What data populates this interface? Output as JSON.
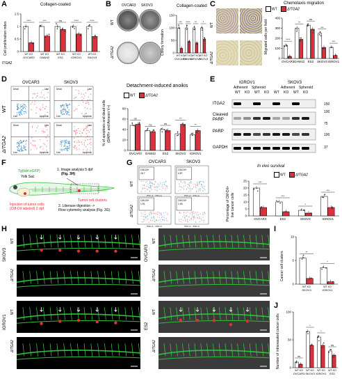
{
  "colors": {
    "wt": "#ffffff",
    "ko": "#d9313d",
    "dot": "#444444",
    "zebra": "#2fbf3a",
    "red": "#e03030",
    "lightgray": "#cfcfcf"
  },
  "panels": {
    "A": "A",
    "B": "B",
    "C": "C",
    "D": "D",
    "E": "E",
    "F": "F",
    "G": "G",
    "H": "H",
    "I": "I",
    "J": "J"
  },
  "legend": {
    "wt": "WT",
    "ko": "ΔITGA2"
  },
  "A": {
    "title": "Collagen-coated",
    "ylabel": "Cell proliferation index",
    "row_itga2": "ITGA2",
    "sig": [
      "****",
      "***",
      "ns",
      "****",
      "****"
    ],
    "chart_data": {
      "type": "bar",
      "categories": [
        "OVCAR3",
        "OAW42",
        "ES2",
        "IGROV1",
        "SKOV3"
      ],
      "xlabels": [
        "WT KO",
        "WT KO",
        "WT KO",
        "WT KO",
        "WT KO"
      ],
      "series": [
        {
          "name": "WT",
          "values": [
            1.0,
            1.0,
            1.0,
            1.0,
            1.0
          ]
        },
        {
          "name": "KO",
          "values": [
            0.35,
            0.62,
            0.88,
            0.7,
            0.6
          ]
        }
      ],
      "ylim": [
        0,
        1.5
      ],
      "yticks": [
        0,
        0.5,
        1.0,
        1.5
      ]
    }
  },
  "B": {
    "col1": "OVCAR3",
    "col2": "SKOV3",
    "row1": "WT",
    "row2": "ΔITGA2",
    "title": "Collagen-coated",
    "ylabel": "Colony formation",
    "sig": [
      "***",
      "****",
      "**",
      "*"
    ],
    "chart_data": {
      "type": "bar",
      "categories": [
        "OVCAR3",
        "OAW42",
        "IGROV1",
        "SKOV3"
      ],
      "xlabels": [
        "WT KO",
        "WT KO",
        "WT KO",
        "WT KO"
      ],
      "series": [
        {
          "name": "WT",
          "values": [
            100,
            100,
            100,
            100
          ]
        },
        {
          "name": "KO",
          "values": [
            18,
            45,
            40,
            55
          ]
        }
      ],
      "ylim": [
        0,
        150
      ],
      "yticks": [
        0,
        50,
        100,
        150
      ]
    }
  },
  "C": {
    "row1": "WT",
    "row2": "ΔITGA2",
    "title": "Chemotaxis migration",
    "ylabel": "Migrated cells per field",
    "sig": [
      "****",
      "**",
      "ns",
      "***",
      "***"
    ],
    "chart_data": {
      "type": "bar",
      "categories": [
        "OVCAR3",
        "OAW42",
        "ES2",
        "SKOV3",
        "IGROV1"
      ],
      "series": [
        {
          "name": "WT",
          "values": [
            130,
            300,
            330,
            250,
            110
          ]
        },
        {
          "name": "ΔITGA2",
          "values": [
            20,
            190,
            290,
            110,
            30
          ]
        }
      ],
      "ylim": [
        0,
        400
      ],
      "yticks": [
        0,
        100,
        200,
        300,
        400
      ]
    }
  },
  "D": {
    "col1": "OVCAR3",
    "col2": "SKOV3",
    "row1": "WT",
    "row2": "ΔITGA2",
    "title": "Detachment-induced anoikis",
    "ylabel": "% of apoptosis and dead cells",
    "ylabel2": "(DAPI+ and Annexin V+)",
    "gates": {
      "ul": "Dead",
      "ur": "Late",
      "ll": "Live",
      "lr": "Apoptotic"
    },
    "axis": "Annexin V-FITC",
    "sig": [
      "ns",
      "ns",
      "ns",
      "**",
      "**"
    ],
    "chart_data": {
      "type": "bar",
      "categories": [
        "OVCAR3",
        "OAW42",
        "ES2",
        "SKOV3",
        "IGROV1"
      ],
      "series": [
        {
          "name": "WT",
          "values": [
            48,
            38,
            40,
            32,
            30
          ]
        },
        {
          "name": "ΔITGA2",
          "values": [
            50,
            36,
            38,
            50,
            38
          ]
        }
      ],
      "ylim": [
        0,
        80
      ],
      "yticks": [
        0,
        20,
        40,
        60,
        80
      ]
    }
  },
  "E": {
    "line1": "IGROV1",
    "line2": "SKOV3",
    "sub": [
      "Adherent",
      "Spheroid",
      "Adherent",
      "Spheroid"
    ],
    "lanes": [
      "WT",
      "KO",
      "WT",
      "KO",
      "WT",
      "KO",
      "WT",
      "KO"
    ],
    "blots": [
      "ITGA2",
      "Cleaved PARP",
      "PARP",
      "GAPDH"
    ],
    "mw": [
      "150",
      "100",
      "75",
      "100",
      "37"
    ]
  },
  "F": {
    "fish": "Tg(kdrl:eGFP)",
    "yolk": "Yolk Sac",
    "step1": "1. Image analysis 5 dpf",
    "step1b": "(Fig. 3H)",
    "step2": "2. Liberase digestion ->",
    "step2b": "Flow cytometry analysis (Fig. 3G)",
    "tumor": "Tumor cell clusters",
    "inj1": "Injection of tumor cells",
    "inj2": "(CM-DiI labeled) 2 dpf"
  },
  "G": {
    "col1": "OVCAR3",
    "col2": "SKOV3",
    "row1": "WT",
    "row2": "ΔITGA2",
    "gate": "CM-DiI+",
    "vals": [
      "16.7",
      "4.57",
      "1.91",
      "1.90"
    ],
    "axis": "PSC-A :: PSC-A",
    "title": "In vivo survival",
    "ylabel": "Percentage of CM-DiI+",
    "ylabel2": "live cancer cells",
    "sig": [
      "***",
      "***",
      "*",
      "***"
    ],
    "chart_data": {
      "type": "bar",
      "categories": [
        "OVCAR3",
        "ES2",
        "SKOV3",
        "IGROV1"
      ],
      "series": [
        {
          "name": "WT",
          "values": [
            20,
            10,
            4,
            14
          ]
        },
        {
          "name": "ΔITGA2",
          "values": [
            6,
            3,
            2,
            6
          ]
        }
      ],
      "ylim": [
        0,
        25
      ],
      "yticks": [
        0,
        5,
        10,
        15,
        20,
        25
      ]
    }
  },
  "H": {
    "line1": "SKOV3",
    "line2": "IGROV1",
    "line3": "OVCAR3",
    "line4": "ES2",
    "wt": "WT",
    "ko": "ΔITGA2"
  },
  "I": {
    "ylabel": "Cancer cell clusters",
    "sig": [
      "**",
      "*"
    ],
    "chart_data": {
      "type": "bar",
      "categories": [
        "SKOV3",
        "IGROV1"
      ],
      "xlabels": [
        "WT KO",
        "WT KO"
      ],
      "series": [
        {
          "name": "WT",
          "values": [
            5.5,
            3.5
          ]
        },
        {
          "name": "KO",
          "values": [
            1.2,
            0.5
          ]
        }
      ],
      "ylim": [
        0,
        10
      ],
      "yticks": [
        0,
        5,
        10
      ]
    }
  },
  "J": {
    "ylabel": "Number of intravasated cancer cells",
    "sig": [
      "ns",
      "*",
      "*",
      "ns"
    ],
    "chart_data": {
      "type": "bar",
      "categories": [
        "OVCAR3",
        "SKOV3",
        "IGROV1",
        "ES2"
      ],
      "xlabels": [
        "WT KO",
        "WT KO",
        "WT KO",
        "WT KO"
      ],
      "series": [
        {
          "name": "WT",
          "values": [
            10,
            65,
            55,
            30
          ]
        },
        {
          "name": "KO",
          "values": [
            6,
            40,
            40,
            22
          ]
        }
      ],
      "ylim": [
        0,
        100
      ],
      "yticks": [
        0,
        50,
        100
      ]
    }
  }
}
